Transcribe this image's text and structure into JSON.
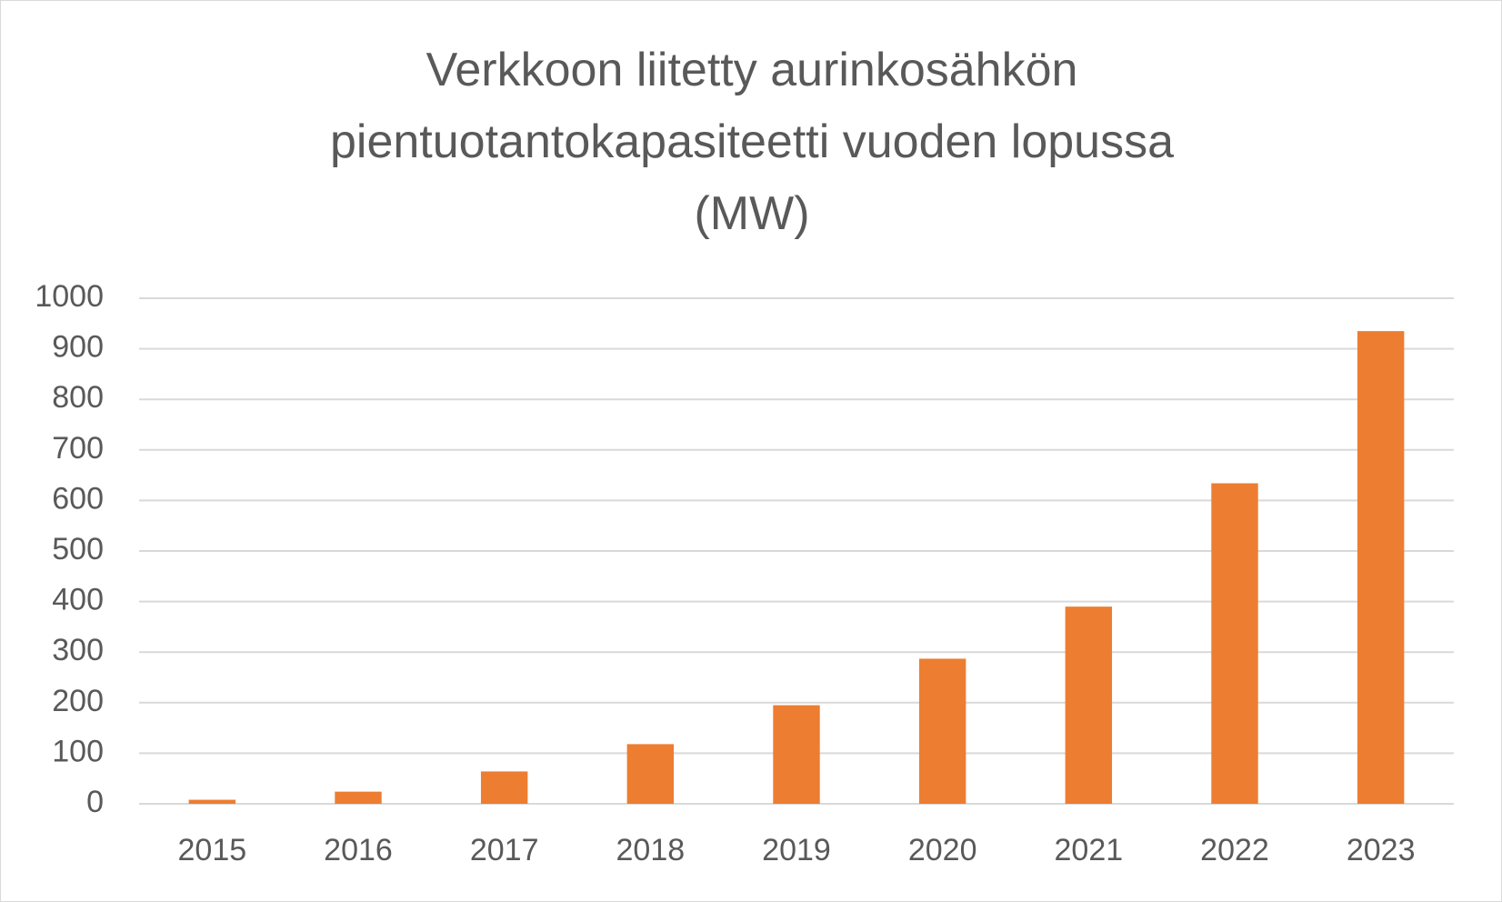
{
  "chart_data": {
    "type": "bar",
    "title": "Verkkoon liitetty aurinkosähkön pientuotantokapasiteetti vuoden lopussa (MW)",
    "categories": [
      "2015",
      "2016",
      "2017",
      "2018",
      "2019",
      "2020",
      "2021",
      "2022",
      "2023"
    ],
    "values": [
      8,
      24,
      64,
      118,
      195,
      287,
      390,
      634,
      935
    ],
    "color": "#ed7d31",
    "ylim": [
      0,
      1000
    ],
    "yticks": [
      0,
      100,
      200,
      300,
      400,
      500,
      600,
      700,
      800,
      900,
      1000
    ],
    "grid": true
  }
}
